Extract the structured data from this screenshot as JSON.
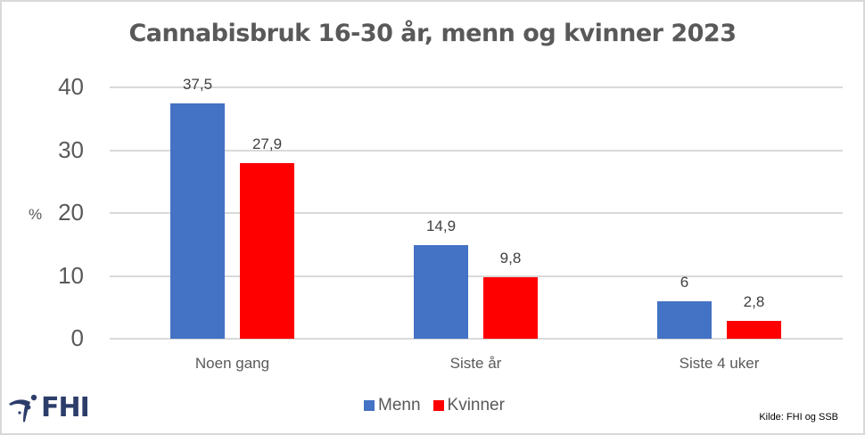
{
  "chart_data": {
    "type": "bar",
    "title": "Cannabisbruk 16-30 år, menn og kvinner 2023",
    "xlabel": "",
    "ylabel": "%",
    "ylim": [
      0,
      40
    ],
    "yticks": [
      "0",
      "10",
      "20",
      "30",
      "40"
    ],
    "grid": true,
    "legend_position": "bottom",
    "categories": [
      "Noen gang",
      "Siste år",
      "Siste 4 uker"
    ],
    "series": [
      {
        "name": "Menn",
        "color": "#4472c4",
        "values": [
          37.5,
          14.9,
          6
        ],
        "labels": [
          "37,5",
          "14,9",
          "6"
        ]
      },
      {
        "name": "Kvinner",
        "color": "#ff0000",
        "values": [
          27.9,
          9.8,
          2.8
        ],
        "labels": [
          "27,9",
          "9,8",
          "2,8"
        ]
      }
    ],
    "source": "Kilde: FHI og SSB"
  },
  "logo": {
    "text": "FHI"
  }
}
